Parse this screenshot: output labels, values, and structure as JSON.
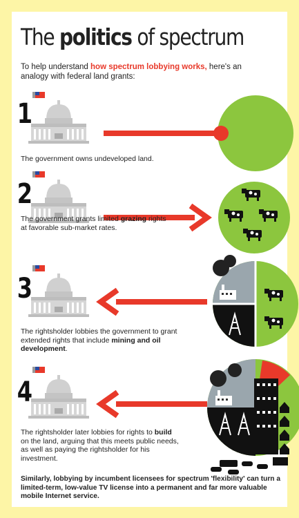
{
  "title": [
    {
      "plain": "The "
    },
    {
      "bold": "politics"
    },
    {
      "plain": " of spectrum"
    }
  ],
  "intro": [
    {
      "plain": "To help understand "
    },
    {
      "highlight": "how spectrum lobbying works,"
    },
    {
      "plain": " here's an analogy with federal land grants:"
    }
  ],
  "steps": [
    {
      "number": "1",
      "text": [
        {
          "plain": "The government owns undeveloped land."
        }
      ]
    },
    {
      "number": "2",
      "text": [
        {
          "plain": "The government grants limited "
        },
        {
          "bold": "grazing"
        },
        {
          "plain": " rights at favorable sub-market rates."
        }
      ]
    },
    {
      "number": "3",
      "text": [
        {
          "plain": "The rightsholder lobbies the government to grant extended rights that include "
        },
        {
          "bold": "mining and oil development"
        },
        {
          "plain": "."
        }
      ]
    },
    {
      "number": "4",
      "text": [
        {
          "plain": "The rightsholder later lobbies for rights to "
        },
        {
          "bold": "build"
        },
        {
          "plain": " on the land, arguing that this meets public needs, as well as paying the rightsholder for his investment."
        }
      ]
    }
  ],
  "conclusion": "Similarly, lobbying by incumbent licensees for spectrum 'flexibility' can turn a limited-term, low-value TV license into a permanent and far more valuable mobile Internet service."
}
